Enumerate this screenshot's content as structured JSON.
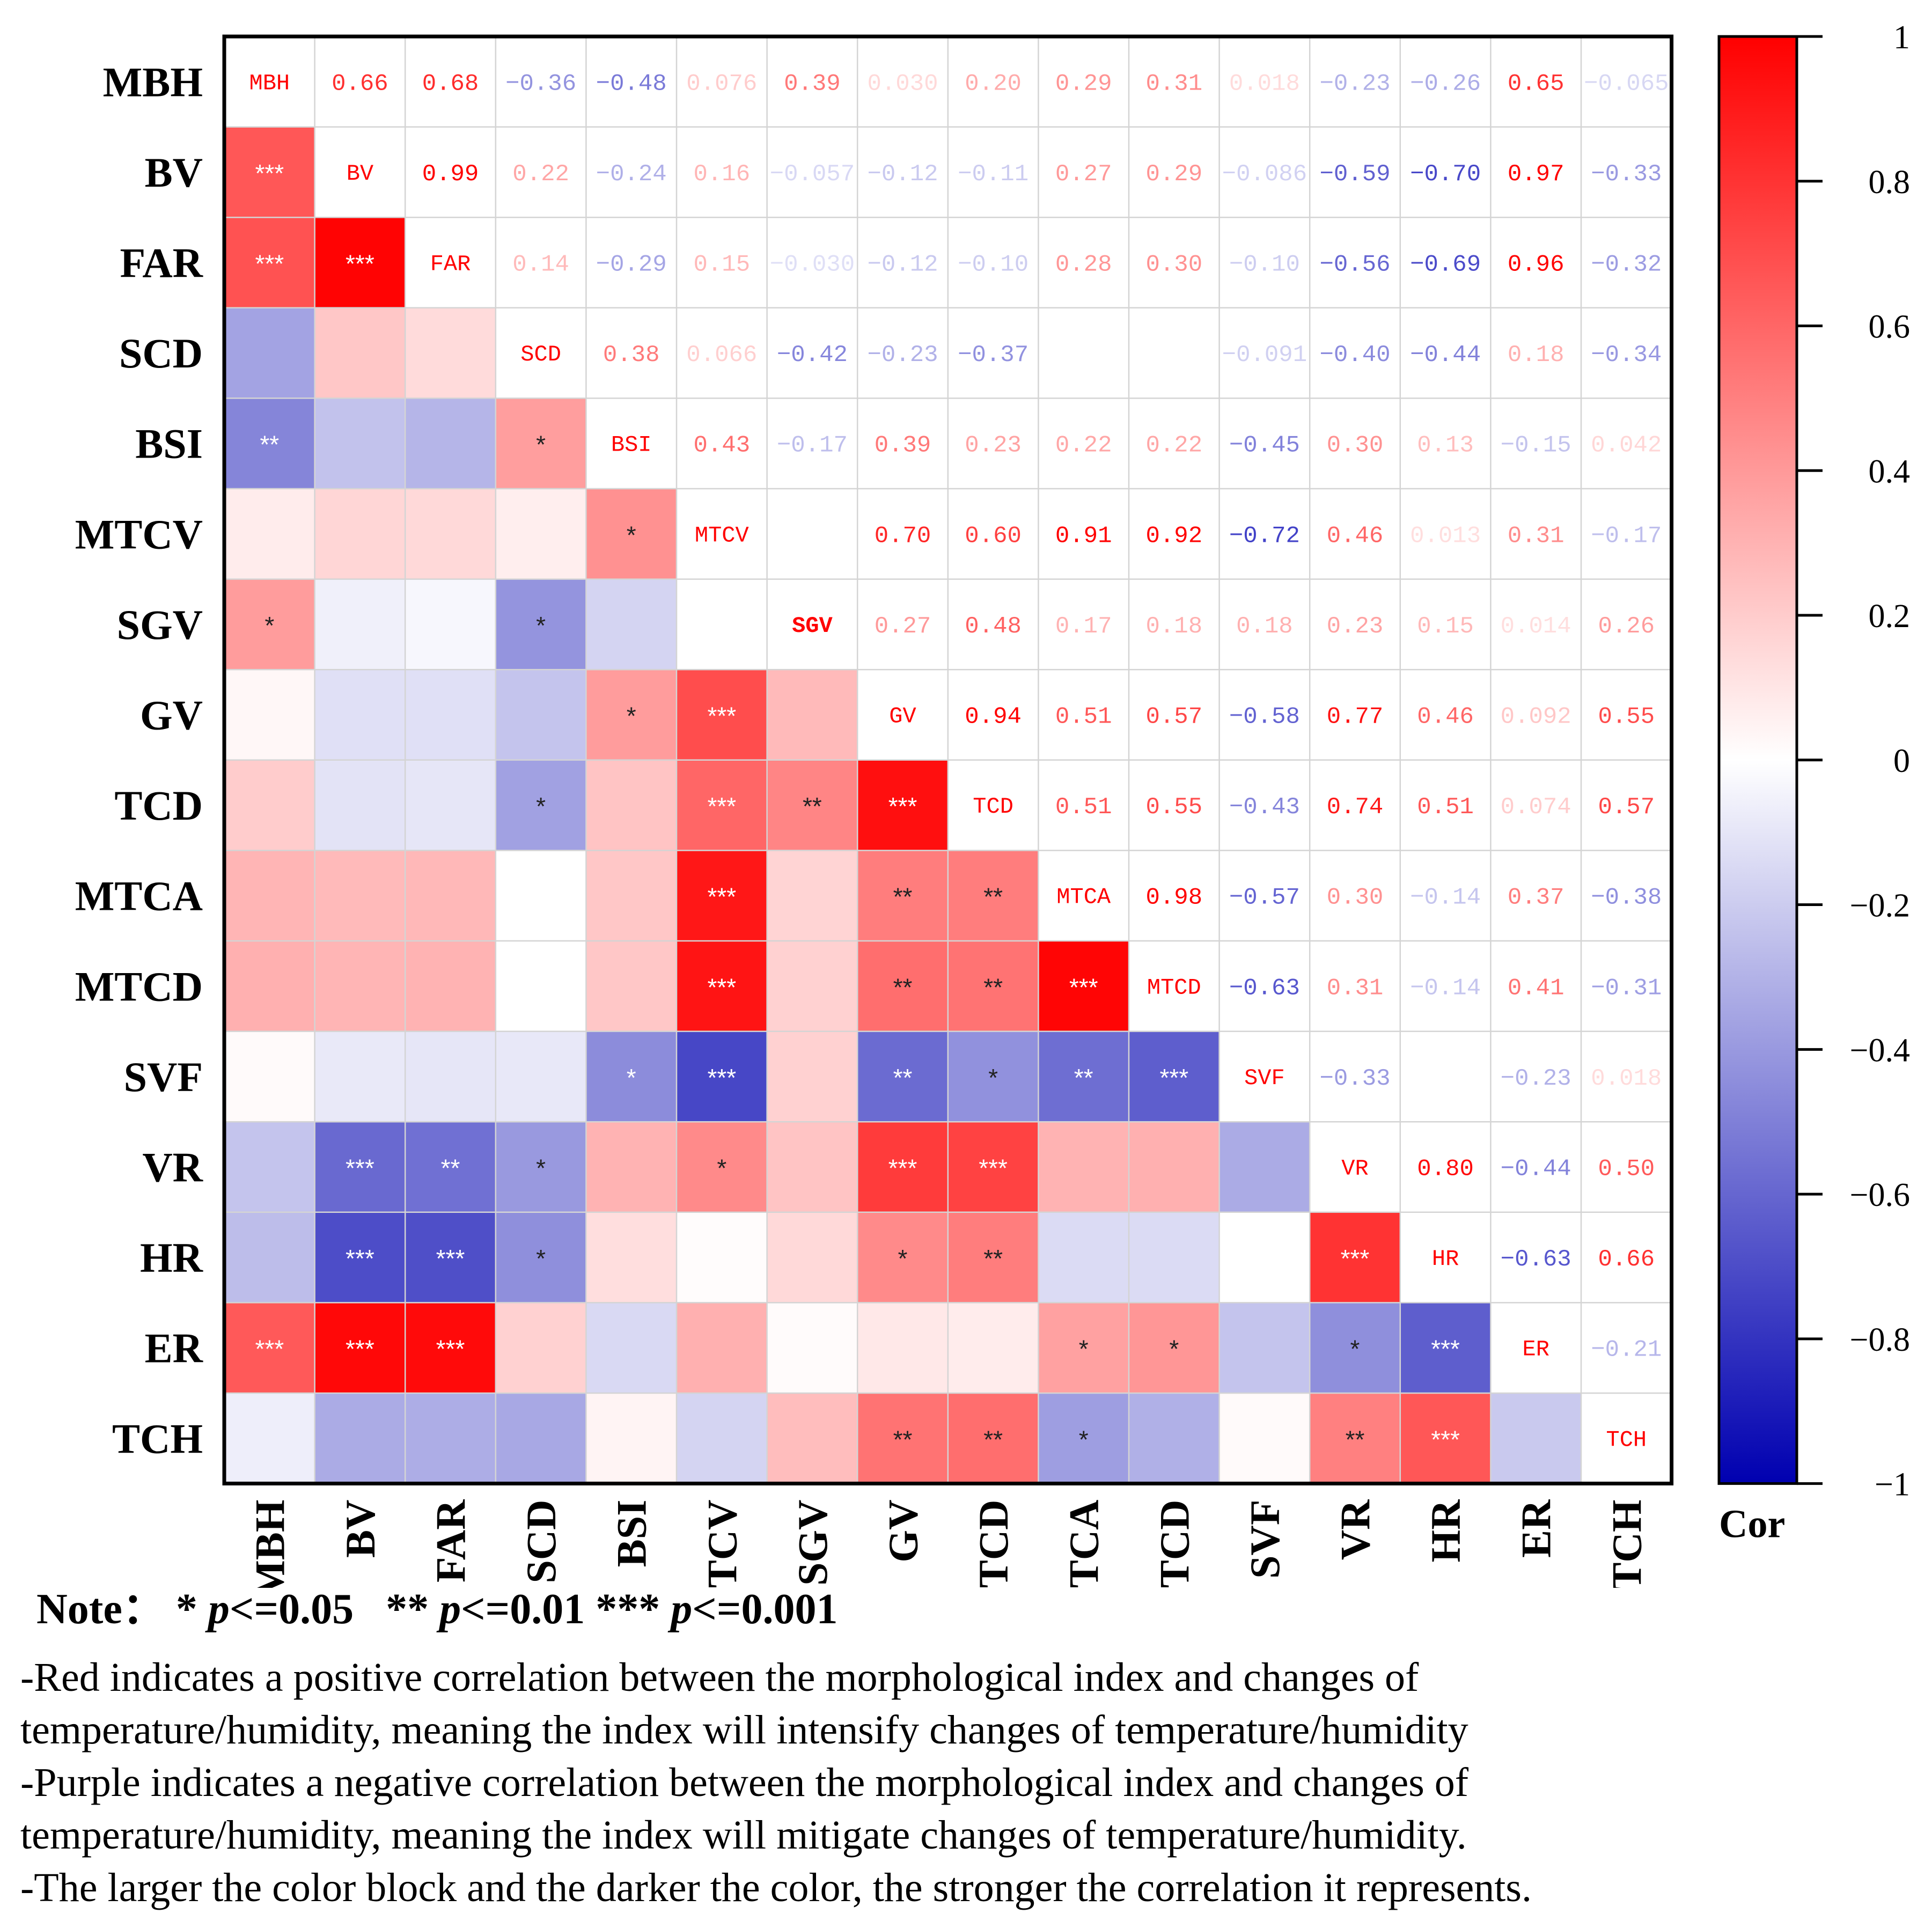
{
  "chart_data": {
    "type": "heatmap",
    "title": "",
    "variables": [
      "MBH",
      "BV",
      "FAR",
      "SCD",
      "BSI",
      "MTCV",
      "SGV",
      "GV",
      "TCD",
      "MTCA",
      "MTCD",
      "SVF",
      "VR",
      "HR",
      "ER",
      "TCH"
    ],
    "upper_labels": [
      [
        "MBH",
        "0.66",
        "0.68",
        "−0.36",
        "−0.48",
        "0.076",
        "0.39",
        "0.030",
        "0.20",
        "0.29",
        "0.31",
        "0.018",
        "−0.23",
        "−0.26",
        "0.65",
        "−0.065"
      ],
      [
        "",
        "BV",
        "0.99",
        "0.22",
        "−0.24",
        "0.16",
        "−0.057",
        "−0.12",
        "−0.11",
        "0.27",
        "0.29",
        "−0.086",
        "−0.59",
        "−0.70",
        "0.97",
        "−0.33"
      ],
      [
        "",
        "",
        "FAR",
        "0.14",
        "−0.29",
        "0.15",
        "−0.030",
        "−0.12",
        "−0.10",
        "0.28",
        "0.30",
        "−0.10",
        "−0.56",
        "−0.69",
        "0.96",
        "−0.32"
      ],
      [
        "",
        "",
        "",
        "SCD",
        "0.38",
        "0.066",
        "−0.42",
        "−0.23",
        "−0.37",
        "",
        "",
        "−0.091",
        "−0.40",
        "−0.44",
        "0.18",
        "−0.34"
      ],
      [
        "",
        "",
        "",
        "",
        "BSI",
        "0.43",
        "−0.17",
        "0.39",
        "0.23",
        "0.22",
        "0.22",
        "−0.45",
        "0.30",
        "0.13",
        "−0.15",
        "0.042"
      ],
      [
        "",
        "",
        "",
        "",
        "",
        "MTCV",
        "",
        "0.70",
        "0.60",
        "0.91",
        "0.92",
        "−0.72",
        "0.46",
        "0.013",
        "0.31",
        "−0.17"
      ],
      [
        "",
        "",
        "",
        "",
        "",
        "",
        "SGV",
        "0.27",
        "0.48",
        "0.17",
        "0.18",
        "0.18",
        "0.23",
        "0.15",
        "0.014",
        "0.26"
      ],
      [
        "",
        "",
        "",
        "",
        "",
        "",
        "",
        "GV",
        "0.94",
        "0.51",
        "0.57",
        "−0.58",
        "0.77",
        "0.46",
        "0.092",
        "0.55"
      ],
      [
        "",
        "",
        "",
        "",
        "",
        "",
        "",
        "",
        "TCD",
        "0.51",
        "0.55",
        "−0.43",
        "0.74",
        "0.51",
        "0.074",
        "0.57"
      ],
      [
        "",
        "",
        "",
        "",
        "",
        "",
        "",
        "",
        "",
        "MTCA",
        "0.98",
        "−0.57",
        "0.30",
        "−0.14",
        "0.37",
        "−0.38"
      ],
      [
        "",
        "",
        "",
        "",
        "",
        "",
        "",
        "",
        "",
        "",
        "MTCD",
        "−0.63",
        "0.31",
        "−0.14",
        "0.41",
        "−0.31"
      ],
      [
        "",
        "",
        "",
        "",
        "",
        "",
        "",
        "",
        "",
        "",
        "",
        "SVF",
        "−0.33",
        "",
        "−0.23",
        "0.018"
      ],
      [
        "",
        "",
        "",
        "",
        "",
        "",
        "",
        "",
        "",
        "",
        "",
        "",
        "VR",
        "0.80",
        "−0.44",
        "0.50"
      ],
      [
        "",
        "",
        "",
        "",
        "",
        "",
        "",
        "",
        "",
        "",
        "",
        "",
        "",
        "HR",
        "−0.63",
        "0.66"
      ],
      [
        "",
        "",
        "",
        "",
        "",
        "",
        "",
        "",
        "",
        "",
        "",
        "",
        "",
        "",
        "ER",
        "−0.21"
      ],
      [
        "",
        "",
        "",
        "",
        "",
        "",
        "",
        "",
        "",
        "",
        "",
        "",
        "",
        "",
        "",
        "TCH"
      ]
    ],
    "lower_values": [
      [
        null,
        null,
        null,
        null,
        null,
        null,
        null,
        null,
        null,
        null,
        null,
        null,
        null,
        null,
        null,
        null
      ],
      [
        0.66,
        null,
        null,
        null,
        null,
        null,
        null,
        null,
        null,
        null,
        null,
        null,
        null,
        null,
        null,
        null
      ],
      [
        0.68,
        0.99,
        null,
        null,
        null,
        null,
        null,
        null,
        null,
        null,
        null,
        null,
        null,
        null,
        null,
        null
      ],
      [
        -0.36,
        0.22,
        0.14,
        null,
        null,
        null,
        null,
        null,
        null,
        null,
        null,
        null,
        null,
        null,
        null,
        null
      ],
      [
        -0.48,
        -0.24,
        -0.29,
        0.38,
        null,
        null,
        null,
        null,
        null,
        null,
        null,
        null,
        null,
        null,
        null,
        null
      ],
      [
        0.076,
        0.16,
        0.15,
        0.066,
        0.43,
        null,
        null,
        null,
        null,
        null,
        null,
        null,
        null,
        null,
        null,
        null
      ],
      [
        0.39,
        -0.057,
        -0.03,
        -0.42,
        -0.17,
        0,
        null,
        null,
        null,
        null,
        null,
        null,
        null,
        null,
        null,
        null
      ],
      [
        0.03,
        -0.12,
        -0.12,
        -0.23,
        0.39,
        0.7,
        0.27,
        null,
        null,
        null,
        null,
        null,
        null,
        null,
        null,
        null
      ],
      [
        0.2,
        -0.11,
        -0.1,
        -0.37,
        0.23,
        0.6,
        0.48,
        0.94,
        null,
        null,
        null,
        null,
        null,
        null,
        null,
        null
      ],
      [
        0.29,
        0.27,
        0.28,
        0,
        0.22,
        0.91,
        0.17,
        0.51,
        0.51,
        null,
        null,
        null,
        null,
        null,
        null,
        null
      ],
      [
        0.31,
        0.29,
        0.3,
        0,
        0.22,
        0.92,
        0.18,
        0.57,
        0.55,
        0.98,
        null,
        null,
        null,
        null,
        null,
        null
      ],
      [
        0.018,
        -0.086,
        -0.1,
        -0.091,
        -0.45,
        -0.72,
        0.18,
        -0.58,
        -0.43,
        -0.57,
        -0.63,
        null,
        null,
        null,
        null,
        null
      ],
      [
        -0.23,
        -0.59,
        -0.56,
        -0.4,
        0.3,
        0.46,
        0.23,
        0.77,
        0.74,
        0.3,
        0.31,
        -0.33,
        null,
        null,
        null,
        null
      ],
      [
        -0.26,
        -0.7,
        -0.69,
        -0.44,
        0.13,
        0.013,
        0.15,
        0.46,
        0.51,
        -0.14,
        -0.14,
        0,
        0.8,
        null,
        null,
        null
      ],
      [
        0.65,
        0.97,
        0.96,
        0.18,
        -0.15,
        0.31,
        0.014,
        0.092,
        0.074,
        0.37,
        0.41,
        -0.23,
        -0.44,
        -0.63,
        null,
        null
      ],
      [
        -0.065,
        -0.33,
        -0.32,
        -0.34,
        0.042,
        -0.17,
        0.26,
        0.55,
        0.57,
        -0.38,
        -0.31,
        0.018,
        0.5,
        0.66,
        -0.21,
        null
      ]
    ],
    "significance": [
      [
        "",
        "",
        "",
        "",
        "",
        "",
        "",
        "",
        "",
        "",
        "",
        "",
        "",
        "",
        "",
        ""
      ],
      [
        "***",
        "",
        "",
        "",
        "",
        "",
        "",
        "",
        "",
        "",
        "",
        "",
        "",
        "",
        "",
        ""
      ],
      [
        "***",
        "***",
        "",
        "",
        "",
        "",
        "",
        "",
        "",
        "",
        "",
        "",
        "",
        "",
        "",
        ""
      ],
      [
        "",
        "",
        "",
        "",
        "",
        "",
        "",
        "",
        "",
        "",
        "",
        "",
        "",
        "",
        "",
        ""
      ],
      [
        "**",
        "",
        "",
        "*",
        "",
        "",
        "",
        "",
        "",
        "",
        "",
        "",
        "",
        "",
        "",
        ""
      ],
      [
        "",
        "",
        "",
        "",
        "*",
        "",
        "",
        "",
        "",
        "",
        "",
        "",
        "",
        "",
        "",
        ""
      ],
      [
        "*",
        "",
        "",
        "*",
        "",
        "",
        "",
        "",
        "",
        "",
        "",
        "",
        "",
        "",
        "",
        ""
      ],
      [
        "",
        "",
        "",
        "",
        "*",
        "***",
        "",
        "",
        "",
        "",
        "",
        "",
        "",
        "",
        "",
        ""
      ],
      [
        "",
        "",
        "",
        "*",
        "",
        "***",
        "**",
        "***",
        "",
        "",
        "",
        "",
        "",
        "",
        "",
        ""
      ],
      [
        "",
        "",
        "",
        "",
        "",
        "***",
        "",
        "**",
        "**",
        "",
        "",
        "",
        "",
        "",
        "",
        ""
      ],
      [
        "",
        "",
        "",
        "",
        "",
        "***",
        "",
        "**",
        "**",
        "***",
        "",
        "",
        "",
        "",
        "",
        ""
      ],
      [
        "",
        "",
        "",
        "",
        "*",
        "***",
        "",
        "**",
        "*",
        "**",
        "***",
        "",
        "",
        "",
        "",
        ""
      ],
      [
        "",
        "***",
        "**",
        "*",
        "",
        "*",
        "",
        "***",
        "***",
        "",
        "",
        "",
        "",
        "",
        "",
        ""
      ],
      [
        "",
        "***",
        "***",
        "*",
        "",
        "",
        "",
        "*",
        "**",
        "",
        "",
        "",
        "***",
        "",
        "",
        ""
      ],
      [
        "***",
        "***",
        "***",
        "",
        "",
        "",
        "",
        "",
        "",
        "*",
        "*",
        "",
        "*",
        "***",
        "",
        ""
      ],
      [
        "",
        "",
        "",
        "",
        "",
        "",
        "",
        "**",
        "**",
        "*",
        "",
        "",
        "**",
        "***",
        "",
        ""
      ]
    ],
    "colorbar": {
      "title": "Cor",
      "range": [
        -1,
        1
      ],
      "tick_values": [
        1,
        0.8,
        0.6,
        0.4,
        0.2,
        0,
        -0.2,
        -0.4,
        -0.6,
        -0.8,
        -1
      ],
      "tick_labels": [
        "1",
        "0.8",
        "0.6",
        "0.4",
        "0.2",
        "0",
        "−0.2",
        "−0.4",
        "−0.6",
        "−0.8",
        "−1"
      ],
      "colors": {
        "negative": "#0000b0",
        "zero": "#ffffff",
        "positive": "#ff0000"
      }
    }
  },
  "note": {
    "prefix": "Note：",
    "items": [
      {
        "stars": "*",
        "p": "p",
        "threshold": "<=0.05"
      },
      {
        "stars": "**",
        "p": "p",
        "threshold": "<=0.01"
      },
      {
        "stars": "***",
        "p": "p",
        "threshold": "<=0.001"
      }
    ],
    "lines": [
      "-Red indicates a positive correlation between the morphological index and changes of",
      "temperature/humidity, meaning the index will intensify changes of temperature/humidity",
      "-Purple indicates a negative correlation between the morphological index and changes of",
      "temperature/humidity, meaning the index will mitigate changes of temperature/humidity.",
      "-The larger the color block and the darker the color, the stronger the correlation it represents."
    ]
  }
}
